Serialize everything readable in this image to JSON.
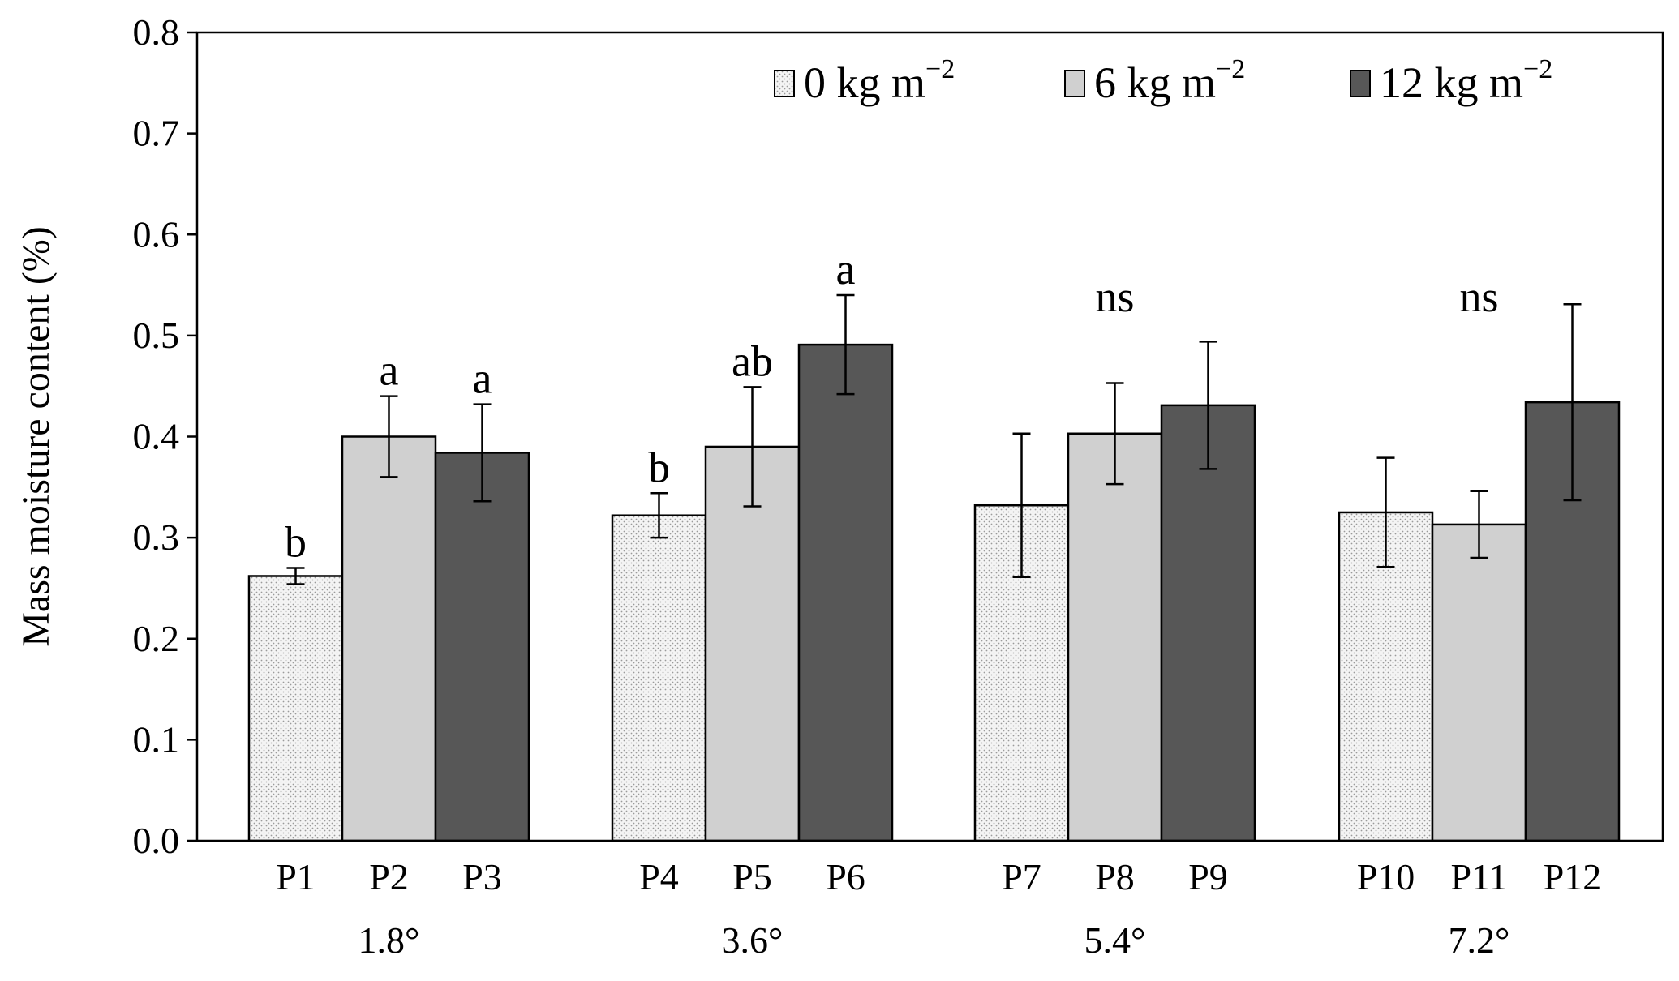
{
  "chart_data": {
    "type": "bar",
    "title": "",
    "xlabel": "",
    "ylabel": "Mass moisture content (%)",
    "ylim": [
      0,
      0.8
    ],
    "yticks": [
      "0.0",
      "0.1",
      "0.2",
      "0.3",
      "0.4",
      "0.5",
      "0.6",
      "0.7",
      "0.8"
    ],
    "grid": false,
    "legend_position": "top-right",
    "series": [
      {
        "name": "0 kg m",
        "superscript": "−2",
        "color": "#f4f4f4",
        "pattern": "dotted"
      },
      {
        "name": "6 kg m",
        "superscript": "−2",
        "color": "#d0d0d0",
        "pattern": "solid"
      },
      {
        "name": "12 kg m",
        "superscript": "−2",
        "color": "#575757",
        "pattern": "solid"
      }
    ],
    "groups": [
      {
        "label": "1.8°",
        "significance_label_mode": "per-bar",
        "bars": [
          {
            "category": "P1",
            "series": 0,
            "value": 0.262,
            "error": 0.008,
            "sig": "b"
          },
          {
            "category": "P2",
            "series": 1,
            "value": 0.4,
            "error": 0.04,
            "sig": "a"
          },
          {
            "category": "P3",
            "series": 2,
            "value": 0.384,
            "error": 0.048,
            "sig": "a"
          }
        ]
      },
      {
        "label": "3.6°",
        "significance_label_mode": "per-bar",
        "bars": [
          {
            "category": "P4",
            "series": 0,
            "value": 0.322,
            "error": 0.022,
            "sig": "b"
          },
          {
            "category": "P5",
            "series": 1,
            "value": 0.39,
            "error": 0.059,
            "sig": "ab"
          },
          {
            "category": "P6",
            "series": 2,
            "value": 0.491,
            "error": 0.049,
            "sig": "a"
          }
        ]
      },
      {
        "label": "5.4°",
        "significance_label_mode": "group",
        "group_sig": "ns",
        "bars": [
          {
            "category": "P7",
            "series": 0,
            "value": 0.332,
            "error": 0.071,
            "sig": ""
          },
          {
            "category": "P8",
            "series": 1,
            "value": 0.403,
            "error": 0.05,
            "sig": ""
          },
          {
            "category": "P9",
            "series": 2,
            "value": 0.431,
            "error": 0.063,
            "sig": ""
          }
        ]
      },
      {
        "label": "7.2°",
        "significance_label_mode": "group",
        "group_sig": "ns",
        "bars": [
          {
            "category": "P10",
            "series": 0,
            "value": 0.325,
            "error": 0.054,
            "sig": ""
          },
          {
            "category": "P11",
            "series": 1,
            "value": 0.313,
            "error": 0.033,
            "sig": ""
          },
          {
            "category": "P12",
            "series": 2,
            "value": 0.434,
            "error": 0.097,
            "sig": ""
          }
        ]
      }
    ]
  }
}
